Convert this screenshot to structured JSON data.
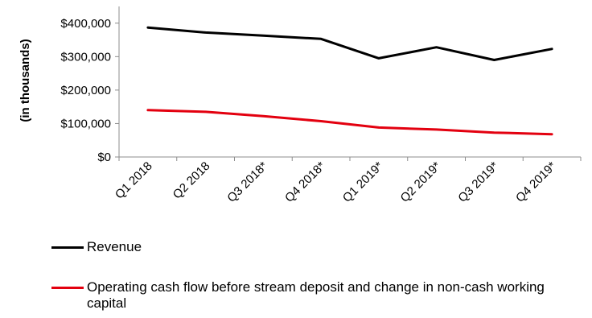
{
  "chart_data": {
    "type": "line",
    "title": "",
    "xlabel": "",
    "ylabel": "(in thousands)",
    "categories": [
      "Q1 2018",
      "Q2 2018",
      "Q3 2018*",
      "Q4 2018*",
      "Q1 2019*",
      "Q2 2019*",
      "Q3 2019*",
      "Q4 2019*"
    ],
    "y_tick_labels": [
      "$0",
      "$100,000",
      "$200,000",
      "$300,000",
      "$400,000"
    ],
    "y_ticks": [
      0,
      100000,
      200000,
      300000,
      400000
    ],
    "ylim": [
      0,
      450000
    ],
    "grid": false,
    "legend_position": "bottom-left",
    "series": [
      {
        "name": "Revenue",
        "color": "#000000",
        "values": [
          387000,
          372000,
          363000,
          353000,
          295000,
          328000,
          290000,
          323000
        ]
      },
      {
        "name": "Operating cash flow before stream deposit and change in non-cash working capital",
        "color": "#e3000f",
        "values": [
          140000,
          135000,
          122000,
          107000,
          88000,
          82000,
          73000,
          68000
        ]
      }
    ]
  }
}
